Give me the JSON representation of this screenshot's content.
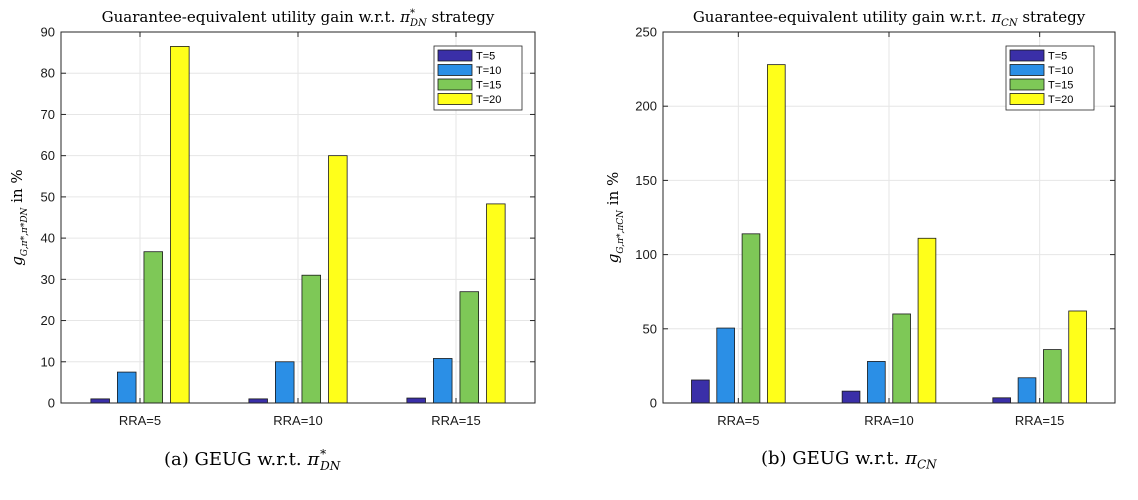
{
  "chart_data": [
    {
      "type": "bar",
      "title": "Guarantee-equivalent utility gain w.r.t. π*DN strategy",
      "ylabel": "gG,π*,π*DN in %",
      "categories": [
        "RRA=5",
        "RRA=10",
        "RRA=15"
      ],
      "ylim": [
        0,
        90
      ],
      "yticks": [
        0,
        10,
        20,
        30,
        40,
        50,
        60,
        70,
        80,
        90
      ],
      "grid": true,
      "legend_position": "top-right",
      "series": [
        {
          "name": "T=5",
          "color": "#3a2fa8",
          "values": [
            1.0,
            1.0,
            1.2
          ]
        },
        {
          "name": "T=10",
          "color": "#2b8fe6",
          "values": [
            7.5,
            10.0,
            10.8
          ]
        },
        {
          "name": "T=15",
          "color": "#7ec857",
          "values": [
            36.7,
            31.0,
            27.0
          ]
        },
        {
          "name": "T=20",
          "color": "#ffff1a",
          "values": [
            86.5,
            60.0,
            48.3
          ]
        }
      ],
      "caption": "(a) GEUG w.r.t. π*DN"
    },
    {
      "type": "bar",
      "title": "Guarantee-equivalent utility gain w.r.t. πCN strategy",
      "ylabel": "gG,π*,πCN in %",
      "categories": [
        "RRA=5",
        "RRA=10",
        "RRA=15"
      ],
      "ylim": [
        0,
        250
      ],
      "yticks": [
        0,
        50,
        100,
        150,
        200,
        250
      ],
      "grid": true,
      "legend_position": "top-right",
      "series": [
        {
          "name": "T=5",
          "color": "#3a2fa8",
          "values": [
            15.5,
            8.0,
            3.5
          ]
        },
        {
          "name": "T=10",
          "color": "#2b8fe6",
          "values": [
            50.5,
            28.0,
            17.0
          ]
        },
        {
          "name": "T=15",
          "color": "#7ec857",
          "values": [
            114.0,
            60.0,
            36.0
          ]
        },
        {
          "name": "T=20",
          "color": "#ffff1a",
          "values": [
            228.0,
            111.0,
            62.0
          ]
        }
      ],
      "caption": "(b) GEUG w.r.t. πCN"
    }
  ]
}
